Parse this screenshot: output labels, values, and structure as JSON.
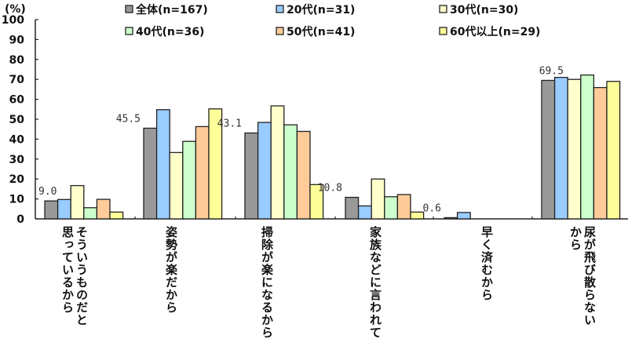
{
  "chart_data": {
    "type": "bar",
    "title": "",
    "ylabel": "(%)",
    "xlabel": "",
    "ylim": [
      0,
      100
    ],
    "yticks": [
      0,
      10,
      20,
      30,
      40,
      50,
      60,
      70,
      80,
      90,
      100
    ],
    "grid": false,
    "legend_position": "top",
    "categories": [
      "そういうものだと思っているから",
      "姿勢が楽だから",
      "掃除が楽になるから",
      "家族などに言われて",
      "早く済むから",
      "尿が飛び散らないから"
    ],
    "category_lines": [
      [
        "そういうものだと",
        "思っているから"
      ],
      [
        "姿勢が楽だから"
      ],
      [
        "掃除が楽になるから"
      ],
      [
        "家族などに言われて"
      ],
      [
        "早く済むから"
      ],
      [
        "尿が飛び散らない",
        "から"
      ]
    ],
    "series": [
      {
        "name": "全体(n=167)",
        "color": "#999999",
        "values": [
          9.0,
          45.5,
          43.1,
          10.8,
          0.6,
          69.5
        ]
      },
      {
        "name": "20代(n=31)",
        "color": "#99ccff",
        "values": [
          9.7,
          54.8,
          48.4,
          6.5,
          3.2,
          71.0
        ]
      },
      {
        "name": "30代(n=30)",
        "color": "#ffffcc",
        "values": [
          16.7,
          33.3,
          56.7,
          20.0,
          0.0,
          70.0
        ]
      },
      {
        "name": "40代(n=36)",
        "color": "#ccffcc",
        "values": [
          5.6,
          38.9,
          47.2,
          11.1,
          0.0,
          72.2
        ]
      },
      {
        "name": "50代(n=41)",
        "color": "#ffcc99",
        "values": [
          9.8,
          46.3,
          43.9,
          12.2,
          0.0,
          65.9
        ]
      },
      {
        "name": "60代以上(n=29)",
        "color": "#ffff99",
        "values": [
          3.4,
          55.2,
          17.2,
          3.4,
          0.0,
          69.0
        ]
      }
    ],
    "annotations": [
      {
        "category": 0,
        "series": 0,
        "text": "9.0"
      },
      {
        "category": 1,
        "series": 0,
        "text": "45.5"
      },
      {
        "category": 2,
        "series": 0,
        "text": "43.1"
      },
      {
        "category": 3,
        "series": 0,
        "text": "10.8"
      },
      {
        "category": 4,
        "series": 0,
        "text": "0.6"
      },
      {
        "category": 5,
        "series": 0,
        "text": "69.5"
      }
    ]
  }
}
